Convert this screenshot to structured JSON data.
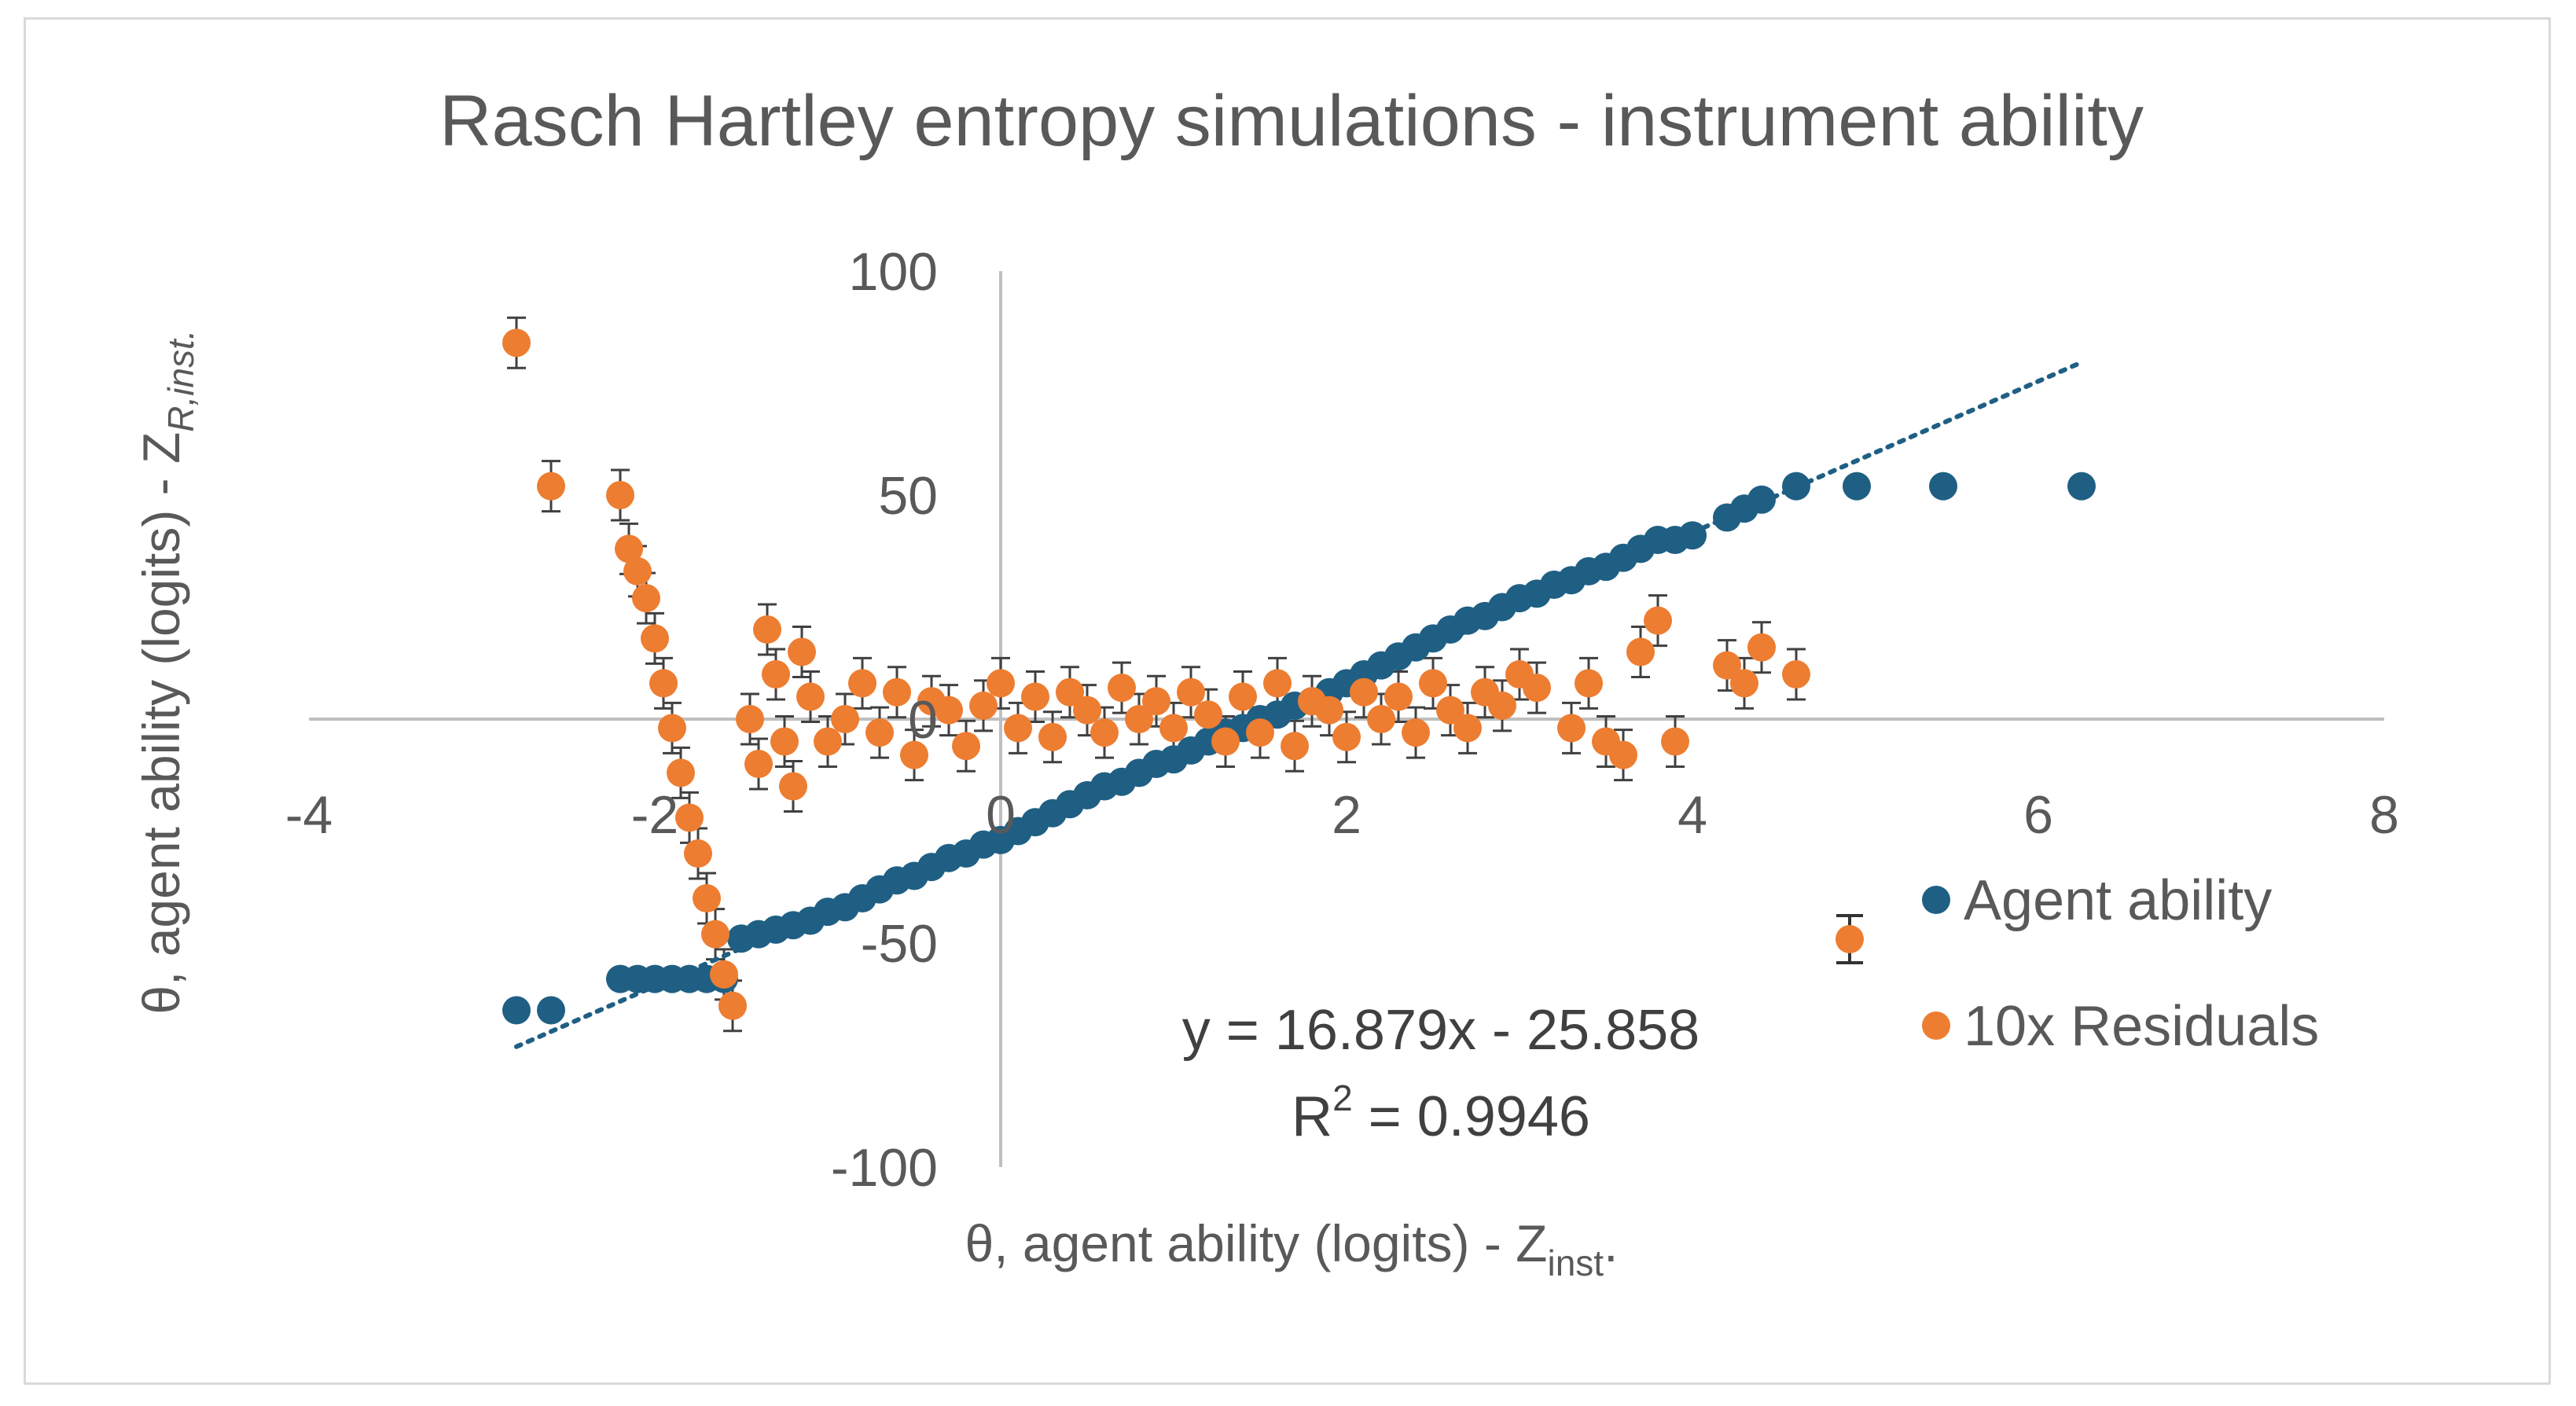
{
  "chart_data": {
    "type": "scatter",
    "title": "Rasch Hartley entropy simulations - instrument ability",
    "xlabel": {
      "main": "θ, agent ability (logits) - Z",
      "sub": "inst",
      "tail": "."
    },
    "ylabel": {
      "main": "θ, agent ability (logits) - Z",
      "sub": "R,inst."
    },
    "xlim": [
      -4,
      8
    ],
    "ylim": [
      -100,
      100
    ],
    "xticks": [
      "-4",
      "-2",
      "0",
      "2",
      "4",
      "6",
      "8"
    ],
    "yticks": [
      "-100",
      "-50",
      "0",
      "50",
      "100"
    ],
    "grid": false,
    "legend_position": "right",
    "series": [
      {
        "name": "Agent ability",
        "color": "#1f5f84",
        "points": [
          [
            -2.8,
            -65
          ],
          [
            -2.6,
            -65
          ],
          [
            -2.2,
            -58
          ],
          [
            -2.1,
            -58
          ],
          [
            -2.0,
            -58
          ],
          [
            -1.9,
            -58
          ],
          [
            -1.8,
            -58
          ],
          [
            -1.7,
            -58
          ],
          [
            -1.6,
            -58
          ],
          [
            -1.5,
            -49
          ],
          [
            -1.4,
            -48
          ],
          [
            -1.3,
            -47
          ],
          [
            -1.2,
            -46
          ],
          [
            -1.1,
            -45
          ],
          [
            -1.0,
            -43
          ],
          [
            -0.9,
            -42
          ],
          [
            -0.8,
            -40
          ],
          [
            -0.7,
            -38
          ],
          [
            -0.6,
            -36
          ],
          [
            -0.5,
            -35
          ],
          [
            -0.4,
            -33
          ],
          [
            -0.3,
            -31
          ],
          [
            -0.2,
            -30
          ],
          [
            -0.1,
            -28
          ],
          [
            0.0,
            -27
          ],
          [
            0.1,
            -25
          ],
          [
            0.2,
            -23
          ],
          [
            0.3,
            -21
          ],
          [
            0.4,
            -19
          ],
          [
            0.5,
            -17
          ],
          [
            0.6,
            -15
          ],
          [
            0.7,
            -14
          ],
          [
            0.8,
            -12
          ],
          [
            0.9,
            -10
          ],
          [
            1.0,
            -9
          ],
          [
            1.1,
            -7
          ],
          [
            1.2,
            -5
          ],
          [
            1.3,
            -3
          ],
          [
            1.4,
            -2
          ],
          [
            1.5,
            0
          ],
          [
            1.6,
            1
          ],
          [
            1.7,
            3
          ],
          [
            1.8,
            4
          ],
          [
            1.9,
            6
          ],
          [
            2.0,
            8
          ],
          [
            2.1,
            10
          ],
          [
            2.2,
            12
          ],
          [
            2.3,
            14
          ],
          [
            2.4,
            16
          ],
          [
            2.5,
            18
          ],
          [
            2.6,
            20
          ],
          [
            2.7,
            22
          ],
          [
            2.8,
            23
          ],
          [
            2.9,
            25
          ],
          [
            3.0,
            27
          ],
          [
            3.1,
            28
          ],
          [
            3.2,
            30
          ],
          [
            3.3,
            31
          ],
          [
            3.4,
            33
          ],
          [
            3.5,
            34
          ],
          [
            3.6,
            36
          ],
          [
            3.7,
            38
          ],
          [
            3.8,
            40
          ],
          [
            3.9,
            40
          ],
          [
            4.0,
            41
          ],
          [
            4.2,
            45
          ],
          [
            4.3,
            47
          ],
          [
            4.4,
            49
          ],
          [
            4.6,
            52
          ],
          [
            4.95,
            52
          ],
          [
            5.45,
            52
          ],
          [
            6.25,
            52
          ]
        ]
      },
      {
        "name": "10x Residuals",
        "color": "#ed7d31",
        "points": [
          [
            -2.8,
            84
          ],
          [
            -2.6,
            52
          ],
          [
            -2.2,
            50
          ],
          [
            -2.15,
            38
          ],
          [
            -2.1,
            33
          ],
          [
            -2.05,
            27
          ],
          [
            -2.0,
            18
          ],
          [
            -1.95,
            8
          ],
          [
            -1.9,
            -2
          ],
          [
            -1.85,
            -12
          ],
          [
            -1.8,
            -22
          ],
          [
            -1.75,
            -30
          ],
          [
            -1.7,
            -40
          ],
          [
            -1.65,
            -48
          ],
          [
            -1.6,
            -57
          ],
          [
            -1.55,
            -64
          ],
          [
            -1.45,
            0
          ],
          [
            -1.4,
            -10
          ],
          [
            -1.35,
            20
          ],
          [
            -1.3,
            10
          ],
          [
            -1.25,
            -5
          ],
          [
            -1.2,
            -15
          ],
          [
            -1.15,
            15
          ],
          [
            -1.1,
            5
          ],
          [
            -1.0,
            -5
          ],
          [
            -0.9,
            0
          ],
          [
            -0.8,
            8
          ],
          [
            -0.7,
            -3
          ],
          [
            -0.6,
            6
          ],
          [
            -0.5,
            -8
          ],
          [
            -0.4,
            4
          ],
          [
            -0.3,
            2
          ],
          [
            -0.2,
            -6
          ],
          [
            -0.1,
            3
          ],
          [
            0.0,
            8
          ],
          [
            0.1,
            -2
          ],
          [
            0.2,
            5
          ],
          [
            0.3,
            -4
          ],
          [
            0.4,
            6
          ],
          [
            0.5,
            2
          ],
          [
            0.6,
            -3
          ],
          [
            0.7,
            7
          ],
          [
            0.8,
            0
          ],
          [
            0.9,
            4
          ],
          [
            1.0,
            -2
          ],
          [
            1.1,
            6
          ],
          [
            1.2,
            1
          ],
          [
            1.3,
            -5
          ],
          [
            1.4,
            5
          ],
          [
            1.5,
            -3
          ],
          [
            1.6,
            8
          ],
          [
            1.7,
            -6
          ],
          [
            1.8,
            4
          ],
          [
            1.9,
            2
          ],
          [
            2.0,
            -4
          ],
          [
            2.1,
            6
          ],
          [
            2.2,
            0
          ],
          [
            2.3,
            5
          ],
          [
            2.4,
            -3
          ],
          [
            2.5,
            8
          ],
          [
            2.6,
            2
          ],
          [
            2.7,
            -2
          ],
          [
            2.8,
            6
          ],
          [
            2.9,
            3
          ],
          [
            3.0,
            10
          ],
          [
            3.1,
            7
          ],
          [
            3.3,
            -2
          ],
          [
            3.4,
            8
          ],
          [
            3.5,
            -5
          ],
          [
            3.6,
            -8
          ],
          [
            3.7,
            15
          ],
          [
            3.8,
            22
          ],
          [
            3.9,
            -5
          ],
          [
            4.2,
            12
          ],
          [
            4.3,
            8
          ],
          [
            4.4,
            16
          ],
          [
            4.6,
            10
          ]
        ]
      }
    ],
    "trendline": {
      "series": "Agent ability",
      "slope": 16.879,
      "intercept": -25.858,
      "x_range": [
        -2.8,
        6.25
      ],
      "color": "#1f5f84",
      "equation": "y = 16.879x - 25.858",
      "r2_prefix": "R",
      "r2_sup": "2",
      "r2_value": " = 0.9946"
    }
  }
}
